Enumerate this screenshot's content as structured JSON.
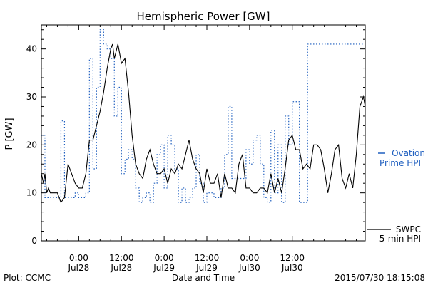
{
  "chart_data": {
    "type": "line",
    "title": "Hemispheric Power [GW]",
    "xlabel": "Date and Time",
    "ylabel": "P [GW]",
    "x_unit": "hours",
    "xlim": [
      -10.5,
      80.5
    ],
    "ylim": [
      0,
      45
    ],
    "yticks": [
      0,
      10,
      20,
      30,
      40
    ],
    "xticks": [
      {
        "x": 0,
        "time": "0:00",
        "date": "Jul28"
      },
      {
        "x": 12,
        "time": "12:00",
        "date": "Jul28"
      },
      {
        "x": 24,
        "time": "0:00",
        "date": "Jul29"
      },
      {
        "x": 36,
        "time": "12:00",
        "date": "Jul29"
      },
      {
        "x": 48,
        "time": "0:00",
        "date": "Jul30"
      },
      {
        "x": 60,
        "time": "12:00",
        "date": "Jul30"
      }
    ],
    "series": [
      {
        "name": "Ovation Prime HPI",
        "legend_lines": [
          "Ovation",
          "Prime HPI"
        ],
        "style": "dotted-step",
        "color": "#1f5fbf",
        "points": [
          [
            -10.5,
            22
          ],
          [
            -9.5,
            9
          ],
          [
            -5.5,
            9
          ],
          [
            -5,
            25
          ],
          [
            -4,
            9
          ],
          [
            -2,
            9
          ],
          [
            -1,
            10
          ],
          [
            0,
            9
          ],
          [
            1,
            9
          ],
          [
            2,
            10
          ],
          [
            3,
            38
          ],
          [
            4,
            15
          ],
          [
            5,
            32
          ],
          [
            6,
            44
          ],
          [
            7,
            41
          ],
          [
            8,
            40
          ],
          [
            9,
            38
          ],
          [
            10,
            26
          ],
          [
            11,
            32
          ],
          [
            12,
            14
          ],
          [
            13,
            17
          ],
          [
            14,
            19
          ],
          [
            15,
            17
          ],
          [
            16,
            11
          ],
          [
            17,
            8
          ],
          [
            18,
            9
          ],
          [
            19,
            10
          ],
          [
            20,
            8
          ],
          [
            21,
            12
          ],
          [
            22,
            18
          ],
          [
            23,
            20
          ],
          [
            24,
            11
          ],
          [
            25,
            22
          ],
          [
            26,
            20
          ],
          [
            27,
            15
          ],
          [
            28,
            8
          ],
          [
            29,
            11
          ],
          [
            30,
            8
          ],
          [
            31,
            9
          ],
          [
            32,
            11
          ],
          [
            33,
            18
          ],
          [
            34,
            12
          ],
          [
            35,
            8
          ],
          [
            36,
            10
          ],
          [
            37,
            10
          ],
          [
            38,
            9
          ],
          [
            39,
            9
          ],
          [
            40,
            11
          ],
          [
            41,
            18
          ],
          [
            42,
            28
          ],
          [
            43,
            13
          ],
          [
            44,
            13
          ],
          [
            45,
            13
          ],
          [
            46,
            13
          ],
          [
            47,
            19
          ],
          [
            48,
            16
          ],
          [
            49,
            21
          ],
          [
            50,
            22
          ],
          [
            51,
            16
          ],
          [
            52,
            9
          ],
          [
            53,
            8
          ],
          [
            54,
            23
          ],
          [
            55,
            10
          ],
          [
            56,
            20
          ],
          [
            57,
            8
          ],
          [
            58,
            26
          ],
          [
            59,
            20
          ],
          [
            60,
            29
          ],
          [
            61,
            29
          ],
          [
            62,
            8
          ],
          [
            63,
            8
          ],
          [
            63.5,
            8
          ],
          [
            64.3,
            41
          ],
          [
            64.6,
            41
          ]
        ]
      },
      {
        "name": "SWPC 5-min HPI",
        "legend_lines": [
          "SWPC",
          "5-min HPI"
        ],
        "style": "solid",
        "color": "#000000",
        "points": [
          [
            -10.5,
            14
          ],
          [
            -9.9,
            12
          ],
          [
            -9.5,
            14
          ],
          [
            -9,
            10
          ],
          [
            -8.5,
            11
          ],
          [
            -8,
            10
          ],
          [
            -7,
            10
          ],
          [
            -6,
            10
          ],
          [
            -5.5,
            9
          ],
          [
            -5,
            8
          ],
          [
            -4,
            9
          ],
          [
            -3,
            16
          ],
          [
            -2,
            14
          ],
          [
            -1,
            12
          ],
          [
            0,
            11
          ],
          [
            1,
            11
          ],
          [
            2,
            14
          ],
          [
            3,
            21
          ],
          [
            4,
            21
          ],
          [
            5,
            24
          ],
          [
            6,
            27
          ],
          [
            7,
            31
          ],
          [
            8,
            36
          ],
          [
            9,
            40
          ],
          [
            9.5,
            41
          ],
          [
            10,
            38
          ],
          [
            11,
            41
          ],
          [
            12,
            37
          ],
          [
            13,
            38
          ],
          [
            14,
            31
          ],
          [
            15,
            22
          ],
          [
            16,
            16
          ],
          [
            17,
            14
          ],
          [
            18,
            13
          ],
          [
            19,
            17
          ],
          [
            20,
            19
          ],
          [
            21,
            16
          ],
          [
            22,
            14
          ],
          [
            23,
            14
          ],
          [
            24,
            15
          ],
          [
            25,
            12
          ],
          [
            26,
            15
          ],
          [
            27,
            14
          ],
          [
            28,
            16
          ],
          [
            29,
            15
          ],
          [
            30,
            18
          ],
          [
            31,
            21
          ],
          [
            32,
            17
          ],
          [
            33,
            15
          ],
          [
            34,
            14
          ],
          [
            35,
            10
          ],
          [
            36,
            15
          ],
          [
            37,
            12
          ],
          [
            38,
            12
          ],
          [
            39,
            14
          ],
          [
            40,
            9
          ],
          [
            41,
            14
          ],
          [
            42,
            11
          ],
          [
            43,
            11
          ],
          [
            44,
            10
          ],
          [
            45,
            16
          ],
          [
            46,
            18
          ],
          [
            47,
            11
          ],
          [
            48,
            11
          ],
          [
            49,
            10
          ],
          [
            50,
            10
          ],
          [
            51,
            11
          ],
          [
            52,
            11
          ],
          [
            53,
            10
          ],
          [
            54,
            14
          ],
          [
            55,
            10
          ],
          [
            56,
            13
          ],
          [
            57,
            10
          ],
          [
            58,
            15
          ],
          [
            59,
            21
          ],
          [
            60,
            22
          ],
          [
            61,
            19
          ],
          [
            62,
            19
          ],
          [
            63,
            15
          ],
          [
            64,
            16
          ],
          [
            65,
            15
          ],
          [
            66,
            20
          ],
          [
            67,
            20
          ],
          [
            68,
            19
          ],
          [
            69,
            15
          ],
          [
            70,
            10
          ],
          [
            71,
            14
          ],
          [
            72,
            19
          ],
          [
            73,
            20
          ],
          [
            74,
            13
          ],
          [
            75,
            11
          ],
          [
            76,
            14
          ],
          [
            77,
            11
          ],
          [
            78,
            18
          ],
          [
            79,
            28
          ],
          [
            80,
            30
          ],
          [
            80.5,
            28
          ]
        ]
      }
    ]
  },
  "footer": {
    "plot_credit": "Plot: CCMC",
    "timestamp": "2015/07/30 18:15:08"
  }
}
